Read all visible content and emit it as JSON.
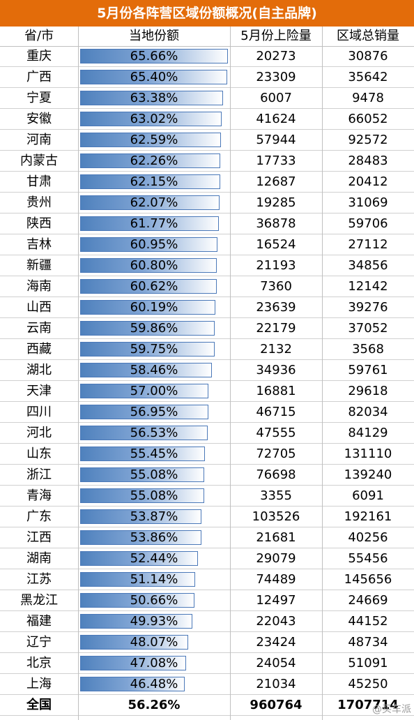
{
  "title": "5月份各阵营区域份额概况(自主品牌)",
  "headers": [
    "省/市",
    "当地份额",
    "5月份上险量",
    "区域总销量"
  ],
  "rows": [
    {
      "region": "重庆",
      "share": "65.66%",
      "insured": "20273",
      "total": "30876"
    },
    {
      "region": "广西",
      "share": "65.40%",
      "insured": "23309",
      "total": "35642"
    },
    {
      "region": "宁夏",
      "share": "63.38%",
      "insured": "6007",
      "total": "9478"
    },
    {
      "region": "安徽",
      "share": "63.02%",
      "insured": "41624",
      "total": "66052"
    },
    {
      "region": "河南",
      "share": "62.59%",
      "insured": "57944",
      "total": "92572"
    },
    {
      "region": "内蒙古",
      "share": "62.26%",
      "insured": "17733",
      "total": "28483"
    },
    {
      "region": "甘肃",
      "share": "62.15%",
      "insured": "12687",
      "total": "20412"
    },
    {
      "region": "贵州",
      "share": "62.07%",
      "insured": "19285",
      "total": "31069"
    },
    {
      "region": "陕西",
      "share": "61.77%",
      "insured": "36878",
      "total": "59706"
    },
    {
      "region": "吉林",
      "share": "60.95%",
      "insured": "16524",
      "total": "27112"
    },
    {
      "region": "新疆",
      "share": "60.80%",
      "insured": "21193",
      "total": "34856"
    },
    {
      "region": "海南",
      "share": "60.62%",
      "insured": "7360",
      "total": "12142"
    },
    {
      "region": "山西",
      "share": "60.19%",
      "insured": "23639",
      "total": "39276"
    },
    {
      "region": "云南",
      "share": "59.86%",
      "insured": "22179",
      "total": "37052"
    },
    {
      "region": "西藏",
      "share": "59.75%",
      "insured": "2132",
      "total": "3568"
    },
    {
      "region": "湖北",
      "share": "58.46%",
      "insured": "34936",
      "total": "59761"
    },
    {
      "region": "天津",
      "share": "57.00%",
      "insured": "16881",
      "total": "29618"
    },
    {
      "region": "四川",
      "share": "56.95%",
      "insured": "46715",
      "total": "82034"
    },
    {
      "region": "河北",
      "share": "56.53%",
      "insured": "47555",
      "total": "84129"
    },
    {
      "region": "山东",
      "share": "55.45%",
      "insured": "72705",
      "total": "131110"
    },
    {
      "region": "浙江",
      "share": "55.08%",
      "insured": "76698",
      "total": "139240"
    },
    {
      "region": "青海",
      "share": "55.08%",
      "insured": "3355",
      "total": "6091"
    },
    {
      "region": "广东",
      "share": "53.87%",
      "insured": "103526",
      "total": "192161"
    },
    {
      "region": "江西",
      "share": "53.86%",
      "insured": "21681",
      "total": "40256"
    },
    {
      "region": "湖南",
      "share": "52.44%",
      "insured": "29079",
      "total": "55456"
    },
    {
      "region": "江苏",
      "share": "51.14%",
      "insured": "74489",
      "total": "145656"
    },
    {
      "region": "黑龙江",
      "share": "50.66%",
      "insured": "12497",
      "total": "24669"
    },
    {
      "region": "福建",
      "share": "49.93%",
      "insured": "22043",
      "total": "44152"
    },
    {
      "region": "辽宁",
      "share": "48.07%",
      "insured": "23424",
      "total": "48734"
    },
    {
      "region": "北京",
      "share": "47.08%",
      "insured": "24054",
      "total": "51091"
    },
    {
      "region": "上海",
      "share": "46.48%",
      "insured": "21034",
      "total": "45250"
    }
  ],
  "total_row": {
    "region": "全国",
    "share": "56.26%",
    "insured": "960764",
    "total": "1707714"
  },
  "watermark": "@买车派",
  "chart_data": {
    "type": "table",
    "title": "5月份各阵营区域份额概况(自主品牌)",
    "columns": [
      "省/市",
      "当地份额",
      "5月份上险量",
      "区域总销量"
    ],
    "categories": [
      "重庆",
      "广西",
      "宁夏",
      "安徽",
      "河南",
      "内蒙古",
      "甘肃",
      "贵州",
      "陕西",
      "吉林",
      "新疆",
      "海南",
      "山西",
      "云南",
      "西藏",
      "湖北",
      "天津",
      "四川",
      "河北",
      "山东",
      "浙江",
      "青海",
      "广东",
      "江西",
      "湖南",
      "江苏",
      "黑龙江",
      "福建",
      "辽宁",
      "北京",
      "上海"
    ],
    "series": [
      {
        "name": "当地份额",
        "values": [
          65.66,
          65.4,
          63.38,
          63.02,
          62.59,
          62.26,
          62.15,
          62.07,
          61.77,
          60.95,
          60.8,
          60.62,
          60.19,
          59.86,
          59.75,
          58.46,
          57.0,
          56.95,
          56.53,
          55.45,
          55.08,
          55.08,
          53.87,
          53.86,
          52.44,
          51.14,
          50.66,
          49.93,
          48.07,
          47.08,
          46.48
        ]
      },
      {
        "name": "5月份上险量",
        "values": [
          20273,
          23309,
          6007,
          41624,
          57944,
          17733,
          12687,
          19285,
          36878,
          16524,
          21193,
          7360,
          23639,
          22179,
          2132,
          34936,
          16881,
          46715,
          47555,
          72705,
          76698,
          3355,
          103526,
          21681,
          29079,
          74489,
          12497,
          22043,
          23424,
          24054,
          21034
        ]
      },
      {
        "name": "区域总销量",
        "values": [
          30876,
          35642,
          9478,
          66052,
          92572,
          28483,
          20412,
          31069,
          59706,
          27112,
          34856,
          12142,
          39276,
          37052,
          3568,
          59761,
          29618,
          82034,
          84129,
          131110,
          139240,
          6091,
          192161,
          40256,
          55456,
          145656,
          24669,
          44152,
          48734,
          51091,
          45250
        ]
      }
    ],
    "total": {
      "当地份额": 56.26,
      "5月份上险量": 960764,
      "区域总销量": 1707714
    },
    "colors": {
      "title_bg": "#e36c0a",
      "bar": "#4f81bd"
    }
  }
}
